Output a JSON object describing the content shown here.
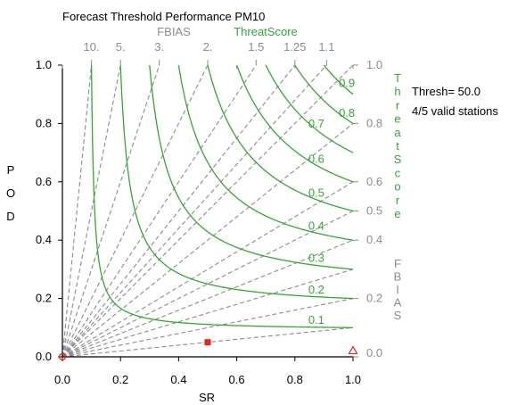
{
  "chart_data": {
    "type": "scatter",
    "title": "Forecast Threshold Performance  PM10",
    "xlabel": "SR",
    "ylabel": "POD",
    "xlim": [
      0.0,
      1.0
    ],
    "ylim": [
      0.0,
      1.0
    ],
    "x_ticks": [
      "0.0",
      "0.2",
      "0.4",
      "0.6",
      "0.8",
      "1.0"
    ],
    "y_ticks": [
      "0.0",
      "0.2",
      "0.4",
      "0.6",
      "0.8",
      "1.0"
    ],
    "fbias": {
      "label": "FBIAS",
      "side_label": "FBIAS",
      "values": [
        10,
        5,
        3,
        2,
        1.5,
        1.25,
        1.1,
        1.0,
        0.8,
        0.6,
        0.5,
        0.4,
        0.3,
        0.2,
        0.1
      ],
      "top_labels": [
        "10.",
        "5.",
        "3.",
        "2.",
        "1.5",
        "1.25",
        "1.1"
      ],
      "right_labels": [
        "1.0",
        "0.8",
        "0.6",
        "0.5",
        "0.4",
        "0.2",
        "0.0"
      ]
    },
    "threat_score": {
      "label": "ThreatScore",
      "side_label": "ThreatScore",
      "values": [
        0.1,
        0.2,
        0.3,
        0.4,
        0.5,
        0.6,
        0.7,
        0.8,
        0.9
      ],
      "curve_labels": [
        "0.1",
        "0.2",
        "0.3",
        "0.4",
        "0.5",
        "0.6",
        "0.7",
        "0.8",
        "0.9"
      ]
    },
    "points": [
      {
        "x": 0.5,
        "y": 0.05,
        "marker": "square-filled",
        "color": "#e8261c"
      },
      {
        "x": 0.0,
        "y": 0.0,
        "marker": "circle-open",
        "color": "#e8261c"
      },
      {
        "x": 1.0,
        "y": 0.02,
        "marker": "triangle-open",
        "color": "#e8261c"
      }
    ],
    "annotations": [
      "Thresh= 50.0",
      "4/5 valid stations"
    ],
    "colors": {
      "fbias": "#8c8c8c",
      "threat": "#34a634",
      "points": "#e8261c",
      "axis": "#000000"
    }
  }
}
